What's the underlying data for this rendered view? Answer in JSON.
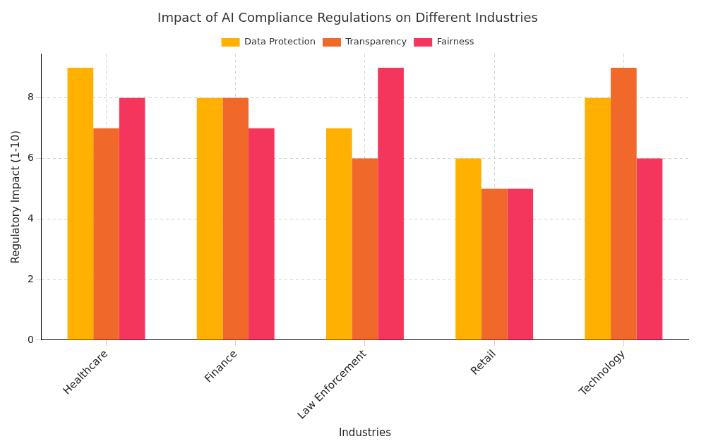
{
  "chart_data": {
    "type": "bar",
    "title": "Impact of AI Compliance Regulations on Different Industries",
    "x_label": "Industries",
    "y_label": "Regulatory Impact (1-10)",
    "categories": [
      "Healthcare",
      "Finance",
      "Law Enforcement",
      "Retail",
      "Technology"
    ],
    "series": [
      {
        "name": "Data Protection",
        "color": "#ffb000",
        "values": [
          9,
          8,
          7,
          6,
          8
        ]
      },
      {
        "name": "Transparency",
        "color": "#f1692a",
        "values": [
          7,
          8,
          6,
          5,
          9
        ]
      },
      {
        "name": "Fairness",
        "color": "#f5365c",
        "values": [
          8,
          7,
          9,
          5,
          6
        ]
      }
    ],
    "ylim": [
      0,
      9.45
    ],
    "yticks": [
      0,
      2,
      4,
      6,
      8
    ],
    "grid": true,
    "legend": "top"
  }
}
